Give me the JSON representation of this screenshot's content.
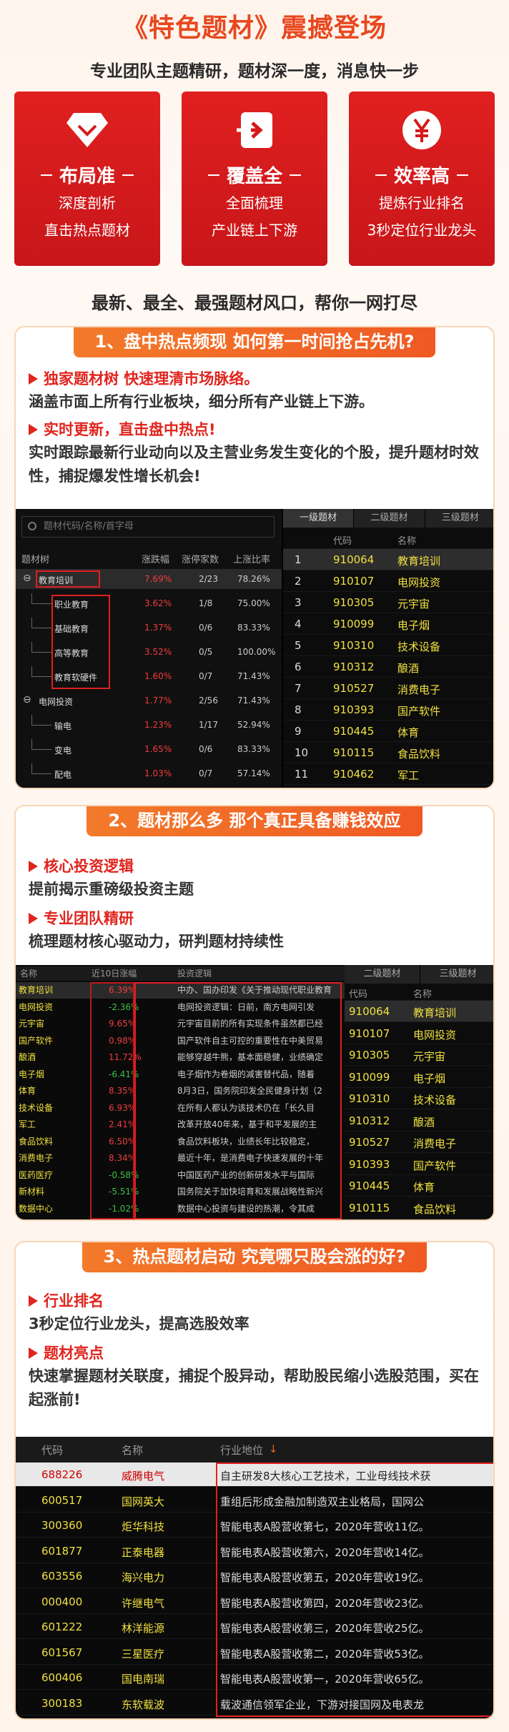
{
  "header": {
    "title": "《特色题材》震撼登场",
    "subtitle": "专业团队主题精研，题材深一度，消息快一步"
  },
  "features": [
    {
      "icon": "diamond-icon",
      "name": "布局准",
      "line1": "深度剖析",
      "line2": "直击热点题材"
    },
    {
      "icon": "enter-icon",
      "name": "覆盖全",
      "line1": "全面梳理",
      "line2": "产业链上下游"
    },
    {
      "icon": "yen-icon",
      "name": "效率高",
      "line1": "提炼行业排名",
      "line2": "3秒定位行业龙头"
    }
  ],
  "slogan": "最新、最全、最强题材风口，帮你一网打尽",
  "colors": {
    "accent": "#e0251e",
    "orange": "#f0612a",
    "stock_yellow": "#f0e040",
    "up_red": "#f03c3c",
    "down_green": "#3cc03c"
  },
  "section1": {
    "title": "1、盘中热点频现  如何第一时间抢占先机?",
    "p1_head": "独家题材树 快速理清市场脉络。",
    "p1_body": "涵盖市面上所有行业板块，细分所有产业链上下游。",
    "p2_head": "实时更新，直击盘中热点!",
    "p2_body": "实时跟踪最新行业动向以及主营业务发生变化的个股，提升题材时效性，捕捉爆发性增长机会!",
    "search_placeholder": "题材代码/名称/首字母",
    "tree_headers": [
      "题材树",
      "涨跌幅",
      "涨停家数",
      "上涨比率"
    ],
    "tree_rows": [
      {
        "name": "教育培训",
        "chg": "7.69%",
        "limit": "2/23",
        "ratio": "78.26%",
        "level": 0,
        "open": true
      },
      {
        "name": "职业教育",
        "chg": "3.62%",
        "limit": "1/8",
        "ratio": "75.00%",
        "level": 1
      },
      {
        "name": "基础教育",
        "chg": "1.37%",
        "limit": "0/6",
        "ratio": "83.33%",
        "level": 1
      },
      {
        "name": "高等教育",
        "chg": "3.52%",
        "limit": "0/5",
        "ratio": "100.00%",
        "level": 1
      },
      {
        "name": "教育软硬件",
        "chg": "1.60%",
        "limit": "0/7",
        "ratio": "71.43%",
        "level": 1
      },
      {
        "name": "电网投资",
        "chg": "1.77%",
        "limit": "2/56",
        "ratio": "71.43%",
        "level": 0,
        "open": true
      },
      {
        "name": "输电",
        "chg": "1.23%",
        "limit": "1/17",
        "ratio": "52.94%",
        "level": 1
      },
      {
        "name": "变电",
        "chg": "1.65%",
        "limit": "0/6",
        "ratio": "83.33%",
        "level": 1
      },
      {
        "name": "配电",
        "chg": "1.03%",
        "limit": "0/7",
        "ratio": "57.14%",
        "level": 1
      }
    ],
    "tabs": [
      "一级题材",
      "二级题材",
      "三级题材"
    ],
    "list_headers": [
      "代码",
      "名称"
    ],
    "list": [
      {
        "no": "1",
        "code": "910064",
        "name": "教育培训"
      },
      {
        "no": "2",
        "code": "910107",
        "name": "电网投资"
      },
      {
        "no": "3",
        "code": "910305",
        "name": "元宇宙"
      },
      {
        "no": "4",
        "code": "910099",
        "name": "电子烟"
      },
      {
        "no": "5",
        "code": "910310",
        "name": "技术设备"
      },
      {
        "no": "6",
        "code": "910312",
        "name": "酿酒"
      },
      {
        "no": "7",
        "code": "910527",
        "name": "消费电子"
      },
      {
        "no": "8",
        "code": "910393",
        "name": "国产软件"
      },
      {
        "no": "9",
        "code": "910445",
        "name": "体育"
      },
      {
        "no": "10",
        "code": "910115",
        "name": "食品饮料"
      },
      {
        "no": "11",
        "code": "910462",
        "name": "军工"
      }
    ]
  },
  "section2": {
    "title": "2、题材那么多 那个真正具备赚钱效应",
    "p1_head": "核心投资逻辑",
    "p1_body": "提前揭示重磅级投资主题",
    "p2_head": "专业团队精研",
    "p2_body": "梳理题材核心驱动力，研判题材持续性",
    "headers": [
      "名称",
      "近10日涨幅",
      "投资逻辑"
    ],
    "rows": [
      {
        "name": "教育培训",
        "chg": "6.39%",
        "logic": "中办、国办印发《关于推动现代职业教育"
      },
      {
        "name": "电网投资",
        "chg": "-2.36%",
        "logic": "电网投资逻辑：日前，南方电网引发"
      },
      {
        "name": "元宇宙",
        "chg": "9.65%",
        "logic": "元宇宙目前的所有实现条件虽然都已经"
      },
      {
        "name": "国产软件",
        "chg": "0.98%",
        "logic": "国产软件自主可控的重要性在中美贸易"
      },
      {
        "name": "酿酒",
        "chg": "11.72%",
        "logic": "能够穿越牛熊，基本面稳健，业绩确定"
      },
      {
        "name": "电子烟",
        "chg": "-6.41%",
        "logic": "电子烟作为卷烟的减害替代品，随着"
      },
      {
        "name": "体育",
        "chg": "8.35%",
        "logic": "8月3日，国务院印发全民健身计划（2"
      },
      {
        "name": "技术设备",
        "chg": "6.93%",
        "logic": "在所有人都认为该技术仍在「长久目"
      },
      {
        "name": "军工",
        "chg": "2.41%",
        "logic": "改革开放40年来，基于和平发展的主"
      },
      {
        "name": "食品饮料",
        "chg": "6.50%",
        "logic": "食品饮料板块，业绩长年比较稳定，"
      },
      {
        "name": "消费电子",
        "chg": "8.34%",
        "logic": "最近十年，是消费电子快速发展的十年"
      },
      {
        "name": "医药医疗",
        "chg": "-0.58%",
        "logic": "中国医药产业的创新研发水平与国际"
      },
      {
        "name": "新材料",
        "chg": "-5.51%",
        "logic": "国务院关于加快培育和发展战略性新兴"
      },
      {
        "name": "数据中心",
        "chg": "-1.02%",
        "logic": "数据中心投资与建设的热潮，令其成"
      }
    ],
    "tabs": [
      "二级题材",
      "三级题材"
    ],
    "list_headers": [
      "代码",
      "名称"
    ],
    "list": [
      {
        "code": "910064",
        "name": "教育培训"
      },
      {
        "code": "910107",
        "name": "电网投资"
      },
      {
        "code": "910305",
        "name": "元宇宙"
      },
      {
        "code": "910099",
        "name": "电子烟"
      },
      {
        "code": "910310",
        "name": "技术设备"
      },
      {
        "code": "910312",
        "name": "酿酒"
      },
      {
        "code": "910527",
        "name": "消费电子"
      },
      {
        "code": "910393",
        "name": "国产软件"
      },
      {
        "code": "910445",
        "name": "体育"
      },
      {
        "code": "910115",
        "name": "食品饮料"
      }
    ]
  },
  "section3": {
    "title": "3、热点题材启动  究竟哪只股会涨的好?",
    "p1_head": "行业排名",
    "p1_body": "3秒定位行业龙头，提高选股效率",
    "p2_head": "题材亮点",
    "p2_body": "快速掌握题材关联度，捕捉个股异动，帮助股民缩小选股范围，买在起涨前!",
    "headers": [
      "代码",
      "名称",
      "行业地位"
    ],
    "rows": [
      {
        "code": "688226",
        "name": "威腾电气",
        "desc": "自主研发8大核心工艺技术，工业母线技术获"
      },
      {
        "code": "600517",
        "name": "国网英大",
        "desc": "重组后形成金融加制造双主业格局，国网公"
      },
      {
        "code": "300360",
        "name": "炬华科技",
        "desc": "智能电表A股营收第七，2020年营收11亿。"
      },
      {
        "code": "601877",
        "name": "正泰电器",
        "desc": "智能电表A股营收第六，2020年营收14亿。"
      },
      {
        "code": "603556",
        "name": "海兴电力",
        "desc": "智能电表A股营收第五，2020年营收19亿。"
      },
      {
        "code": "000400",
        "name": "许继电气",
        "desc": "智能电表A股营收第四，2020年营收23亿。"
      },
      {
        "code": "601222",
        "name": "林洋能源",
        "desc": "智能电表A股营收第三，2020年营收25亿。"
      },
      {
        "code": "601567",
        "name": "三星医疗",
        "desc": "智能电表A股营收第二，2020年营收53亿。"
      },
      {
        "code": "600406",
        "name": "国电南瑞",
        "desc": "智能电表A股营收第一，2020年营收65亿。"
      },
      {
        "code": "300183",
        "name": "东软载波",
        "desc": "载波通信领军企业，下游对接国网及电表龙"
      }
    ]
  }
}
